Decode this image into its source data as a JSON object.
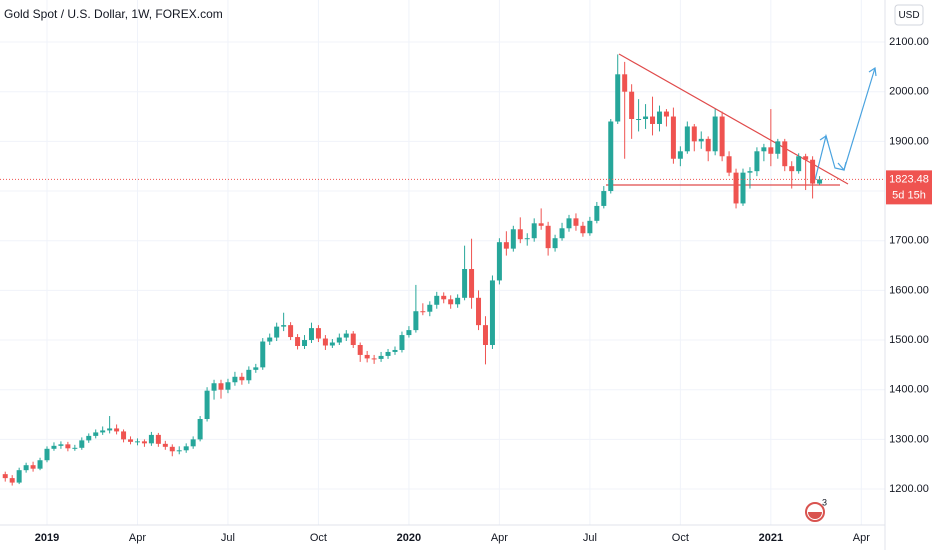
{
  "chart_data": {
    "type": "candlestick",
    "title": "Gold Spot / U.S. Dollar, 1W, FOREX.com",
    "currency": "USD",
    "countdown": "5d 15h",
    "badge": "3",
    "up_color": "#26a69a",
    "down_color": "#ef5350",
    "grid": true,
    "ylim": [
      1127.6,
      2184.6
    ],
    "yticks": [
      {
        "value": 1200,
        "label": "1200.00"
      },
      {
        "value": 1300,
        "label": "1300.00"
      },
      {
        "value": 1400,
        "label": "1400.00"
      },
      {
        "value": 1500,
        "label": "1500.00"
      },
      {
        "value": 1600,
        "label": "1600.00"
      },
      {
        "value": 1700,
        "label": "1700.00"
      },
      {
        "value": 1800,
        "label": "1800.00"
      },
      {
        "value": 1900,
        "label": "1900.00"
      },
      {
        "value": 2000,
        "label": "2000.00"
      },
      {
        "value": 2100,
        "label": "2100.00"
      }
    ],
    "categories": [
      null,
      null,
      null,
      null,
      null,
      null,
      "2019",
      null,
      null,
      null,
      null,
      null,
      null,
      null,
      null,
      null,
      null,
      null,
      null,
      "Apr",
      null,
      null,
      null,
      null,
      null,
      null,
      null,
      null,
      null,
      null,
      null,
      null,
      "Jul",
      null,
      null,
      null,
      null,
      null,
      null,
      null,
      null,
      null,
      null,
      null,
      null,
      "Oct",
      null,
      null,
      null,
      null,
      null,
      null,
      null,
      null,
      null,
      null,
      null,
      null,
      "2020",
      null,
      null,
      null,
      null,
      null,
      null,
      null,
      null,
      null,
      null,
      null,
      null,
      "Apr",
      null,
      null,
      null,
      null,
      null,
      null,
      null,
      null,
      null,
      null,
      null,
      null,
      "Jul",
      null,
      null,
      null,
      null,
      null,
      null,
      null,
      null,
      null,
      null,
      null,
      null,
      "Oct",
      null,
      null,
      null,
      null,
      null,
      null,
      null,
      null,
      null,
      null,
      null,
      null,
      "2021",
      null,
      null,
      null,
      null,
      null,
      null,
      null,
      null,
      null,
      null,
      null,
      null,
      "Apr"
    ],
    "open": [
      1230,
      1222,
      1213,
      1238,
      1248,
      1241,
      1258,
      1281,
      1287,
      1290,
      1282,
      1283,
      1298,
      1307,
      1314,
      1318,
      1322,
      1316,
      1300,
      1295,
      1296,
      1292,
      1309,
      1291,
      1285,
      1276,
      1278,
      1286,
      1300,
      1341,
      1398,
      1413,
      1400,
      1415,
      1426,
      1419,
      1440,
      1445,
      1497,
      1505,
      1527,
      1530,
      1506,
      1488,
      1500,
      1524,
      1503,
      1489,
      1495,
      1505,
      1513,
      1490,
      1470,
      1463,
      1462,
      1468,
      1476,
      1480,
      1510,
      1520,
      1558,
      1557,
      1571,
      1589,
      1582,
      1572,
      1585,
      1643,
      1585,
      1530,
      1490,
      1620,
      1697,
      1684,
      1723,
      1703,
      1705,
      1735,
      1730,
      1685,
      1705,
      1725,
      1745,
      1730,
      1715,
      1740,
      1770,
      1800,
      1940,
      2035,
      2000,
      1945,
      1945,
      1950,
      1935,
      1960,
      1950,
      1865,
      1880,
      1930,
      1900,
      1905,
      1880,
      1950,
      1870,
      1837,
      1775,
      1837,
      1840,
      1880,
      1888,
      1875,
      1900,
      1850,
      1840,
      1870,
      1863,
      1815,
      null,
      null,
      null,
      null,
      null,
      null
    ],
    "high": [
      1235,
      1228,
      1243,
      1253,
      1255,
      1263,
      1286,
      1294,
      1296,
      1295,
      1289,
      1304,
      1312,
      1320,
      1326,
      1347,
      1330,
      1320,
      1306,
      1302,
      1300,
      1315,
      1313,
      1297,
      1290,
      1286,
      1292,
      1306,
      1347,
      1405,
      1420,
      1420,
      1422,
      1436,
      1434,
      1447,
      1452,
      1504,
      1513,
      1535,
      1555,
      1536,
      1512,
      1510,
      1535,
      1530,
      1510,
      1502,
      1513,
      1520,
      1518,
      1495,
      1478,
      1470,
      1476,
      1482,
      1487,
      1517,
      1528,
      1611,
      1574,
      1578,
      1597,
      1596,
      1590,
      1592,
      1690,
      1704,
      1600,
      1548,
      1630,
      1705,
      1719,
      1730,
      1747,
      1715,
      1745,
      1765,
      1738,
      1712,
      1736,
      1752,
      1755,
      1738,
      1748,
      1778,
      1810,
      1945,
      2075,
      2060,
      2015,
      1985,
      1975,
      1990,
      1972,
      1965,
      1968,
      1890,
      1940,
      1935,
      1920,
      1910,
      1965,
      1960,
      1880,
      1845,
      1845,
      1848,
      1888,
      1895,
      1965,
      1905,
      1905,
      1860,
      1876,
      1875,
      1870,
      1830,
      null,
      null,
      null,
      null,
      null,
      null
    ],
    "low": [
      1215,
      1207,
      1210,
      1233,
      1235,
      1238,
      1254,
      1277,
      1281,
      1276,
      1277,
      1279,
      1293,
      1302,
      1309,
      1312,
      1310,
      1294,
      1290,
      1288,
      1285,
      1287,
      1285,
      1279,
      1266,
      1270,
      1273,
      1281,
      1296,
      1336,
      1380,
      1382,
      1393,
      1408,
      1410,
      1412,
      1434,
      1440,
      1490,
      1498,
      1518,
      1500,
      1481,
      1482,
      1494,
      1496,
      1480,
      1484,
      1490,
      1498,
      1484,
      1456,
      1455,
      1452,
      1456,
      1462,
      1470,
      1475,
      1505,
      1515,
      1550,
      1548,
      1563,
      1574,
      1563,
      1565,
      1580,
      1563,
      1520,
      1451,
      1482,
      1612,
      1670,
      1678,
      1695,
      1690,
      1698,
      1722,
      1670,
      1678,
      1700,
      1718,
      1720,
      1708,
      1710,
      1735,
      1765,
      1795,
      1935,
      1865,
      1905,
      1920,
      1925,
      1912,
      1920,
      1930,
      1855,
      1850,
      1875,
      1880,
      1885,
      1860,
      1872,
      1860,
      1830,
      1765,
      1770,
      1805,
      1830,
      1860,
      1850,
      1865,
      1840,
      1805,
      1835,
      1802,
      1785,
      1812,
      null,
      null,
      null,
      null,
      null,
      null
    ],
    "close": [
      1222,
      1213,
      1238,
      1248,
      1241,
      1258,
      1281,
      1287,
      1290,
      1282,
      1283,
      1298,
      1307,
      1314,
      1318,
      1322,
      1316,
      1300,
      1295,
      1296,
      1292,
      1309,
      1291,
      1285,
      1276,
      1278,
      1286,
      1300,
      1341,
      1398,
      1413,
      1400,
      1415,
      1426,
      1419,
      1440,
      1445,
      1497,
      1505,
      1527,
      1530,
      1506,
      1488,
      1500,
      1524,
      1503,
      1489,
      1495,
      1505,
      1513,
      1490,
      1470,
      1463,
      1462,
      1468,
      1476,
      1480,
      1510,
      1520,
      1558,
      1557,
      1571,
      1589,
      1582,
      1572,
      1585,
      1643,
      1585,
      1530,
      1490,
      1620,
      1697,
      1684,
      1723,
      1703,
      1705,
      1735,
      1730,
      1685,
      1705,
      1725,
      1745,
      1730,
      1715,
      1740,
      1770,
      1800,
      1940,
      2035,
      2000,
      1945,
      1945,
      1950,
      1935,
      1960,
      1950,
      1865,
      1880,
      1930,
      1900,
      1905,
      1880,
      1950,
      1870,
      1837,
      1775,
      1837,
      1840,
      1880,
      1888,
      1875,
      1900,
      1850,
      1840,
      1870,
      1863,
      1815,
      1823.48,
      null,
      null,
      null,
      null,
      null,
      null
    ]
  }
}
